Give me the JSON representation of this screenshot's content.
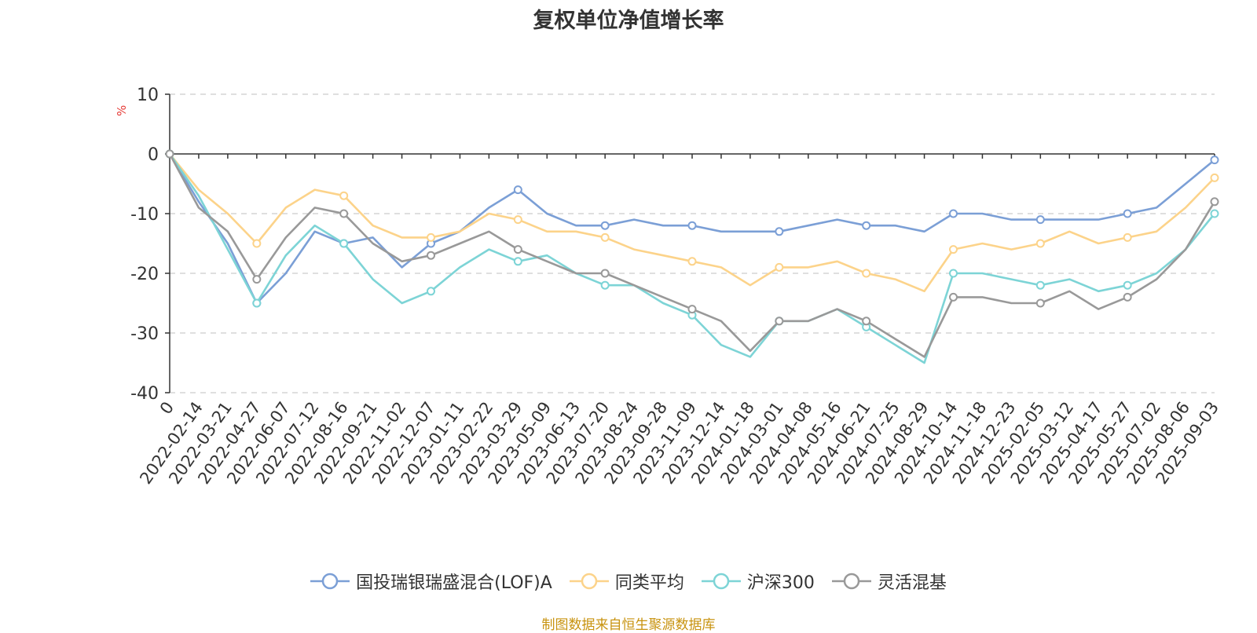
{
  "chart_data": {
    "type": "line",
    "title": "复权单位净值增长率",
    "ylabel": "%",
    "ylim": [
      -40,
      10
    ],
    "yticks": [
      10,
      0,
      -10,
      -20,
      -30,
      -40
    ],
    "grid": "horizontal dashed",
    "legend_position": "bottom",
    "x_tick_labels": [
      "0",
      "2022-02-14",
      "2022-03-21",
      "2022-04-27",
      "2022-06-07",
      "2022-07-12",
      "2022-08-16",
      "2022-09-21",
      "2022-11-02",
      "2022-12-07",
      "2023-01-11",
      "2023-02-22",
      "2023-03-29",
      "2023-05-09",
      "2023-06-13",
      "2023-07-20",
      "2023-08-24",
      "2023-09-28",
      "2023-11-09",
      "2023-12-14",
      "2024-01-18",
      "2024-03-01",
      "2024-04-08",
      "2024-05-16",
      "2024-06-21",
      "2024-07-25",
      "2024-08-29",
      "2024-10-14",
      "2024-11-18",
      "2024-12-23",
      "2025-02-05",
      "2025-03-12",
      "2025-04-17",
      "2025-05-27",
      "2025-07-02",
      "2025-08-06",
      "2025-09-03"
    ],
    "series": [
      {
        "name": "国投瑞银瑞盛混合(LOF)A",
        "color": "#7b9fd6",
        "values": [
          0,
          -8,
          -15,
          -25,
          -20,
          -13,
          -15,
          -14,
          -19,
          -15,
          -13,
          -9,
          -6,
          -10,
          -12,
          -12,
          -11,
          -12,
          -12,
          -13,
          -13,
          -13,
          -12,
          -11,
          -12,
          -12,
          -13,
          -10,
          -10,
          -11,
          -11,
          -11,
          -11,
          -10,
          -9,
          -5,
          -1
        ]
      },
      {
        "name": "同类平均",
        "color": "#fcd38a",
        "values": [
          0,
          -6,
          -10,
          -15,
          -9,
          -6,
          -7,
          -12,
          -14,
          -14,
          -13,
          -10,
          -11,
          -13,
          -13,
          -14,
          -16,
          -17,
          -18,
          -19,
          -22,
          -19,
          -19,
          -18,
          -20,
          -21,
          -23,
          -16,
          -15,
          -16,
          -15,
          -13,
          -15,
          -14,
          -13,
          -9,
          -4
        ]
      },
      {
        "name": "沪深300",
        "color": "#7dd4d6",
        "values": [
          0,
          -7,
          -16,
          -25,
          -17,
          -12,
          -15,
          -21,
          -25,
          -23,
          -19,
          -16,
          -18,
          -17,
          -20,
          -22,
          -22,
          -25,
          -27,
          -32,
          -34,
          -28,
          -28,
          -26,
          -29,
          -32,
          -35,
          -20,
          -20,
          -21,
          -22,
          -21,
          -23,
          -22,
          -20,
          -16,
          -10
        ]
      },
      {
        "name": "灵活混基",
        "color": "#999999",
        "values": [
          0,
          -9,
          -13,
          -21,
          -14,
          -9,
          -10,
          -15,
          -18,
          -17,
          -15,
          -13,
          -16,
          -18,
          -20,
          -20,
          -22,
          -24,
          -26,
          -28,
          -33,
          -28,
          -28,
          -26,
          -28,
          -31,
          -34,
          -24,
          -24,
          -25,
          -25,
          -23,
          -26,
          -24,
          -21,
          -16,
          -8
        ]
      }
    ]
  },
  "source": "制图数据来自恒生聚源数据库"
}
